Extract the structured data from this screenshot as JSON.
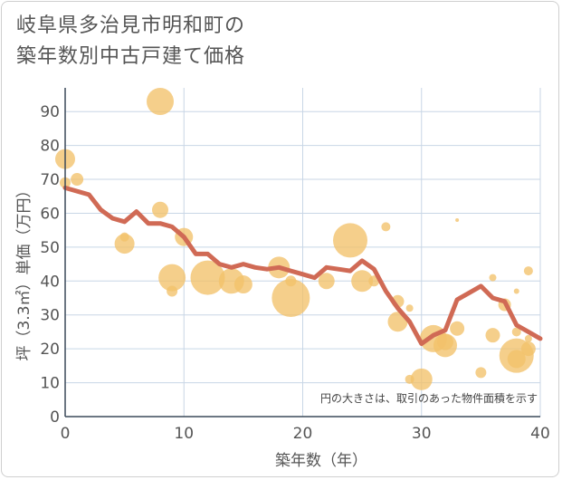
{
  "title_line1": "岐阜県多治見市明和町の",
  "title_line2": "築年数別中古戸建て価格",
  "chart_data": {
    "type": "scatter",
    "title": "岐阜県多治見市明和町の築年数別中古戸建て価格",
    "xlabel": "築年数（年）",
    "ylabel": "坪（3.3㎡）単価（万円）",
    "xlim": [
      0,
      40
    ],
    "ylim": [
      0,
      97
    ],
    "xticks": [
      0,
      10,
      20,
      30,
      40
    ],
    "yticks": [
      0,
      10,
      20,
      30,
      40,
      50,
      60,
      70,
      80,
      90
    ],
    "grid": true,
    "annotation": "円の大きさは、取引のあった物件面積を示す",
    "colors": {
      "bubble": "#f2c16a",
      "line": "#d06a55",
      "grid": "#c8d6e6"
    },
    "bubbles": [
      {
        "x": 0,
        "y": 76,
        "s": 11
      },
      {
        "x": 0,
        "y": 69,
        "s": 6
      },
      {
        "x": 1,
        "y": 70,
        "s": 7
      },
      {
        "x": 5,
        "y": 51,
        "s": 11
      },
      {
        "x": 5,
        "y": 53,
        "s": 5
      },
      {
        "x": 8,
        "y": 93,
        "s": 15
      },
      {
        "x": 8,
        "y": 61,
        "s": 9
      },
      {
        "x": 9,
        "y": 41,
        "s": 15
      },
      {
        "x": 9,
        "y": 37,
        "s": 6
      },
      {
        "x": 10,
        "y": 53,
        "s": 10
      },
      {
        "x": 12,
        "y": 41,
        "s": 19
      },
      {
        "x": 14,
        "y": 40,
        "s": 14
      },
      {
        "x": 15,
        "y": 39,
        "s": 10
      },
      {
        "x": 18,
        "y": 44,
        "s": 12
      },
      {
        "x": 19,
        "y": 35,
        "s": 21
      },
      {
        "x": 19,
        "y": 40,
        "s": 6
      },
      {
        "x": 22,
        "y": 40,
        "s": 9
      },
      {
        "x": 24,
        "y": 52,
        "s": 19
      },
      {
        "x": 25,
        "y": 40,
        "s": 12
      },
      {
        "x": 26,
        "y": 40,
        "s": 6
      },
      {
        "x": 27,
        "y": 56,
        "s": 5
      },
      {
        "x": 28,
        "y": 34,
        "s": 7
      },
      {
        "x": 28,
        "y": 28,
        "s": 11
      },
      {
        "x": 29,
        "y": 32,
        "s": 4
      },
      {
        "x": 29,
        "y": 11,
        "s": 5
      },
      {
        "x": 30,
        "y": 11,
        "s": 12
      },
      {
        "x": 31,
        "y": 23,
        "s": 15
      },
      {
        "x": 32,
        "y": 21,
        "s": 13
      },
      {
        "x": 32,
        "y": 22,
        "s": 9
      },
      {
        "x": 33,
        "y": 26,
        "s": 8
      },
      {
        "x": 33,
        "y": 58,
        "s": 2
      },
      {
        "x": 35,
        "y": 13,
        "s": 6
      },
      {
        "x": 36,
        "y": 24,
        "s": 8
      },
      {
        "x": 36,
        "y": 41,
        "s": 4
      },
      {
        "x": 37,
        "y": 33,
        "s": 7
      },
      {
        "x": 38,
        "y": 37,
        "s": 3
      },
      {
        "x": 38,
        "y": 18,
        "s": 19
      },
      {
        "x": 38,
        "y": 25,
        "s": 5
      },
      {
        "x": 38,
        "y": 17,
        "s": 10
      },
      {
        "x": 39,
        "y": 20,
        "s": 8
      },
      {
        "x": 39,
        "y": 43,
        "s": 5
      },
      {
        "x": 39,
        "y": 23,
        "s": 4
      }
    ],
    "trend": {
      "x": [
        0,
        1,
        2,
        3,
        4,
        5,
        6,
        7,
        8,
        9,
        10,
        11,
        12,
        13,
        14,
        15,
        16,
        17,
        18,
        19,
        20,
        21,
        22,
        23,
        24,
        25,
        26,
        27,
        28,
        29,
        30,
        31,
        32,
        33,
        34,
        35,
        36,
        37,
        38,
        39,
        40
      ],
      "y": [
        67.5,
        66.5,
        65.5,
        61,
        58.5,
        57.5,
        60.5,
        57,
        57,
        56,
        53,
        48,
        48,
        45,
        44,
        45,
        44,
        43.5,
        44,
        43,
        42,
        41,
        44,
        43.5,
        43,
        46,
        43.5,
        37,
        32,
        28,
        21.5,
        24,
        25.5,
        34.5,
        36.5,
        38.5,
        35,
        34,
        27,
        25,
        23
      ]
    }
  }
}
